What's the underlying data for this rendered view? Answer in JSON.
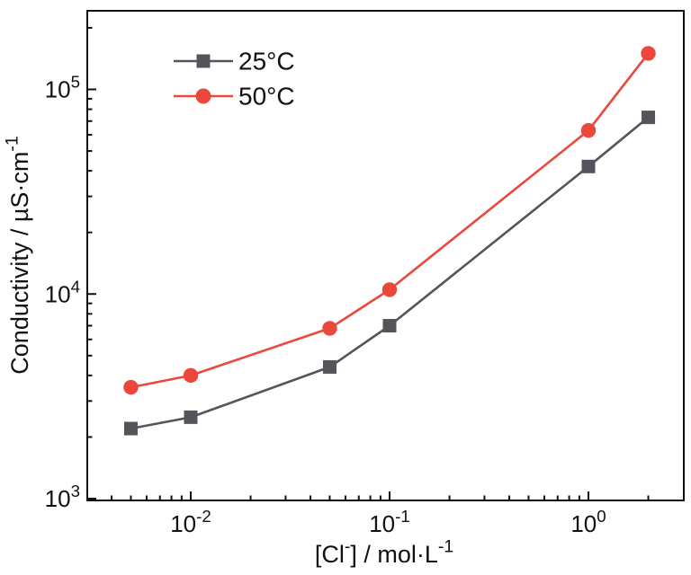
{
  "chart_data": {
    "type": "line",
    "title": "",
    "grid": false,
    "background": "#ffffff",
    "ink_color": "#111111",
    "x_axis": {
      "scale": "log",
      "lim": [
        0.003,
        3
      ],
      "title_text": "[Cl⁻] / mol·L⁻¹",
      "title_rich": [
        {
          "t": "[Cl"
        },
        {
          "t": "-",
          "sup": true
        },
        {
          "t": "] / mol·L"
        },
        {
          "t": "-1",
          "sup": true
        }
      ],
      "major_ticks": [
        {
          "v": 0.01,
          "text": "10⁻²",
          "rich": [
            {
              "t": "10"
            },
            {
              "t": "-2",
              "sup": true
            }
          ]
        },
        {
          "v": 0.1,
          "text": "10⁻¹",
          "rich": [
            {
              "t": "10"
            },
            {
              "t": "-1",
              "sup": true
            }
          ]
        },
        {
          "v": 1,
          "text": "10⁰",
          "rich": [
            {
              "t": "10"
            },
            {
              "t": "0",
              "sup": true
            }
          ]
        }
      ]
    },
    "y_axis": {
      "scale": "log",
      "lim": [
        1000,
        242000
      ],
      "title_text": "Conductivity / µS·cm⁻¹",
      "title_rich": [
        {
          "t": "Conductivity / µS·cm"
        },
        {
          "t": "-1",
          "sup": true
        }
      ],
      "major_ticks": [
        {
          "v": 1000,
          "text": "10³",
          "rich": [
            {
              "t": "10"
            },
            {
              "t": "3",
              "sup": true
            }
          ]
        },
        {
          "v": 10000,
          "text": "10⁴",
          "rich": [
            {
              "t": "10"
            },
            {
              "t": "4",
              "sup": true
            }
          ]
        },
        {
          "v": 100000,
          "text": "10⁵",
          "rich": [
            {
              "t": "10"
            },
            {
              "t": "5",
              "sup": true
            }
          ]
        }
      ]
    },
    "legend": {
      "position": "inside top-left",
      "entries": [
        "25°C",
        "50°C"
      ]
    },
    "series": [
      {
        "name": "25°C",
        "color": "#53555A",
        "marker": "square",
        "x": [
          0.005,
          0.01,
          0.05,
          0.1,
          1,
          2
        ],
        "y": [
          2200,
          2500,
          4400,
          7000,
          42000,
          73000
        ]
      },
      {
        "name": "50°C",
        "color": "#E9483B",
        "marker": "circle",
        "x": [
          0.005,
          0.01,
          0.05,
          0.1,
          1,
          2
        ],
        "y": [
          3500,
          4000,
          6800,
          10500,
          63000,
          150000
        ]
      }
    ]
  }
}
